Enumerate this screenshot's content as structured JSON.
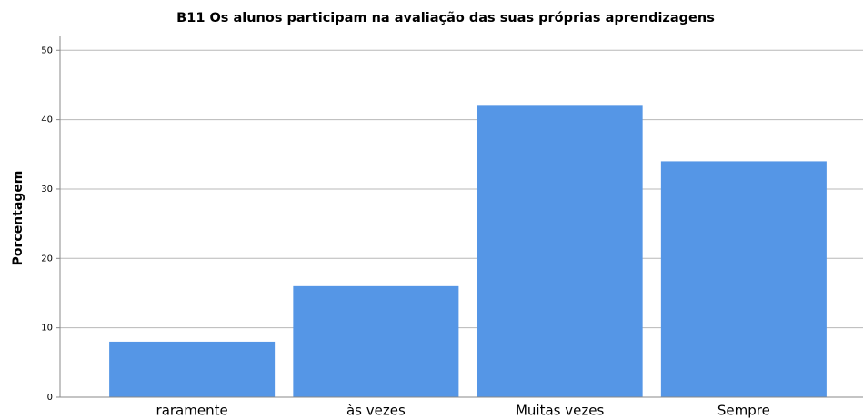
{
  "chart_data": {
    "type": "bar",
    "title": "B11 Os alunos participam na avaliação das suas próprias aprendizagens",
    "y_label": "Porcentagem",
    "categories": [
      "raramente",
      "às vezes",
      "Muitas vezes",
      "Sempre"
    ],
    "values": [
      8,
      16,
      42,
      34
    ],
    "color": "#5596e6",
    "ylim": [
      0,
      52
    ],
    "yticks": [
      0,
      10,
      20,
      30,
      40,
      50
    ],
    "grid": true
  }
}
